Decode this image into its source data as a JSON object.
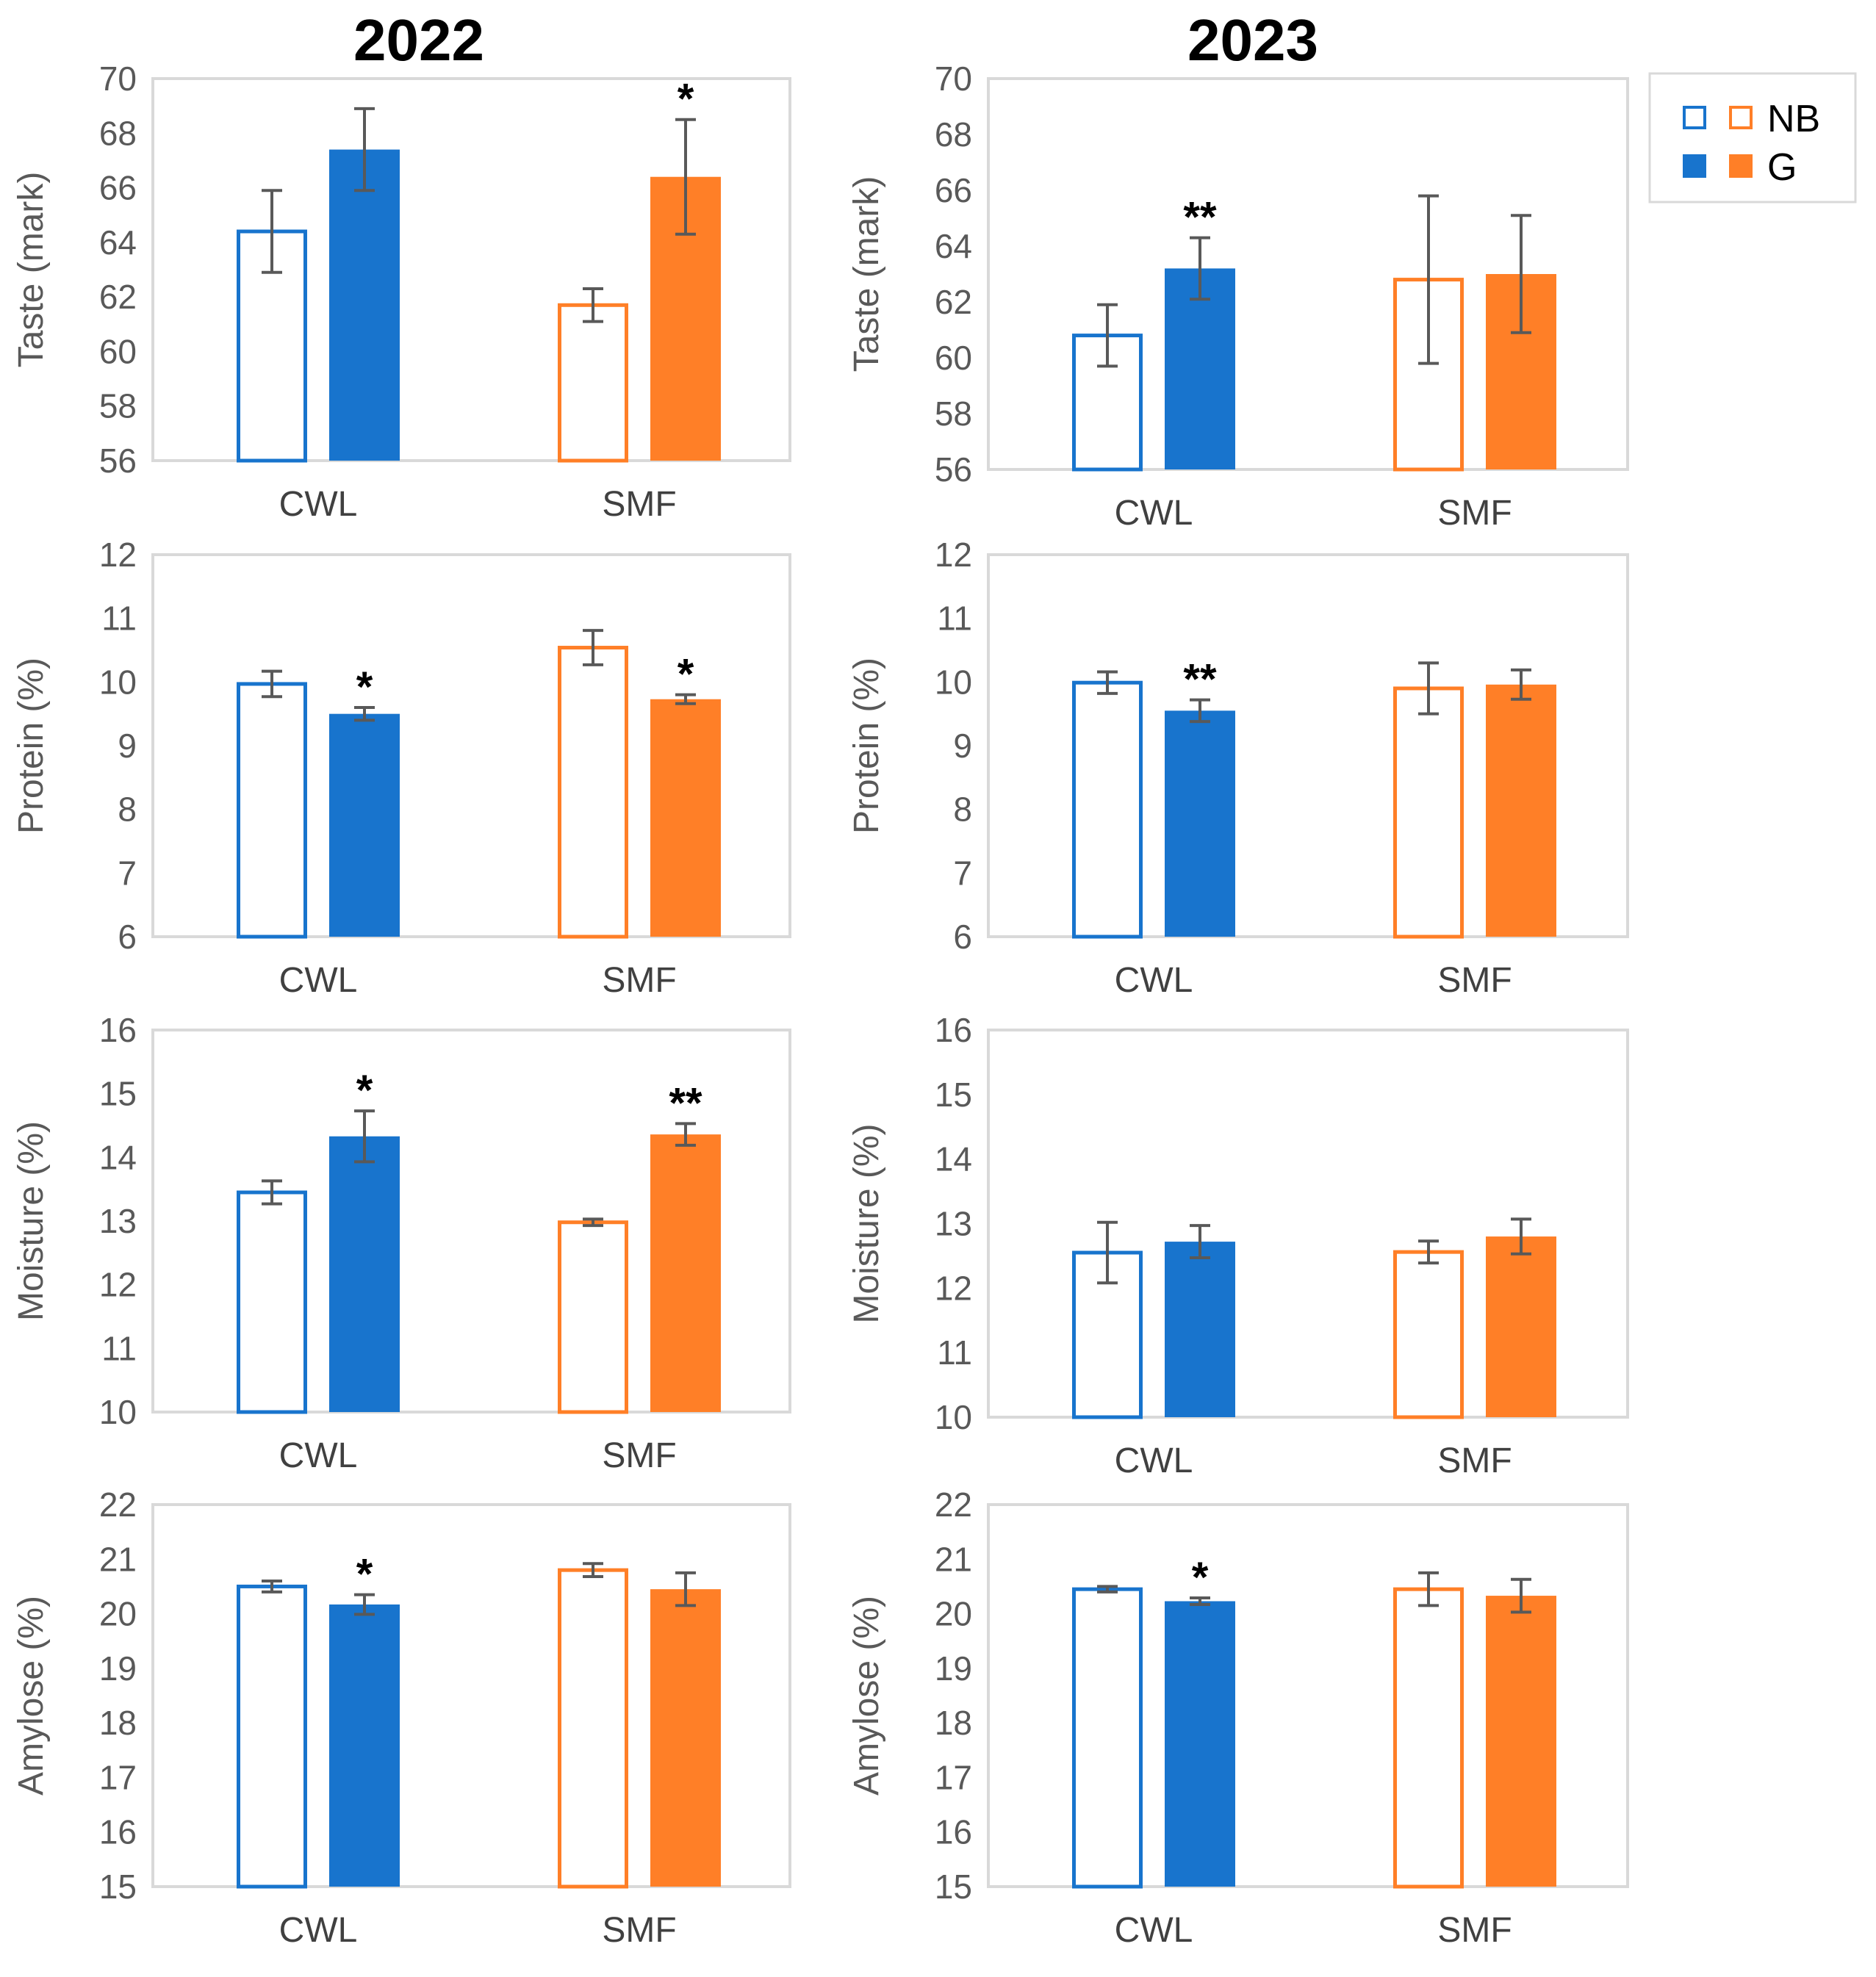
{
  "colors": {
    "blue": "#1874CD",
    "orange": "#FF7F27",
    "frame": "#D9D9D9",
    "error_bar": "#595959"
  },
  "legend": [
    {
      "label": "NB",
      "fill": "open"
    },
    {
      "label": "G",
      "fill": "solid"
    }
  ],
  "years": [
    "2022",
    "2023"
  ],
  "chart_data": [
    {
      "type": "bar",
      "year": "2022",
      "ylabel": "Taste (mark)",
      "ylim": [
        56,
        70
      ],
      "yticks": [
        56,
        58,
        60,
        62,
        64,
        66,
        68,
        70
      ],
      "categories": [
        "CWL",
        "SMF"
      ],
      "series": [
        {
          "name": "NB",
          "values": [
            64.4,
            61.7
          ],
          "errors": [
            1.5,
            0.6
          ]
        },
        {
          "name": "G",
          "values": [
            67.4,
            66.4
          ],
          "errors": [
            1.5,
            2.1
          ]
        }
      ],
      "significance": [
        {
          "category": "SMF",
          "series": "G",
          "label": "*"
        }
      ]
    },
    {
      "type": "bar",
      "year": "2023",
      "ylabel": "Taste (mark)",
      "ylim": [
        56,
        70
      ],
      "yticks": [
        56,
        58,
        60,
        62,
        64,
        66,
        68,
        70
      ],
      "categories": [
        "CWL",
        "SMF"
      ],
      "series": [
        {
          "name": "NB",
          "values": [
            60.8,
            62.8
          ],
          "errors": [
            1.1,
            3.0
          ]
        },
        {
          "name": "G",
          "values": [
            63.2,
            63.0
          ],
          "errors": [
            1.1,
            2.1
          ]
        }
      ],
      "significance": [
        {
          "category": "CWL",
          "series": "G",
          "label": "**"
        }
      ]
    },
    {
      "type": "bar",
      "year": "2022",
      "ylabel": "Protein (%)",
      "ylim": [
        6,
        12
      ],
      "yticks": [
        6,
        7,
        8,
        9,
        10,
        11,
        12
      ],
      "categories": [
        "CWL",
        "SMF"
      ],
      "series": [
        {
          "name": "NB",
          "values": [
            9.97,
            10.54
          ],
          "errors": [
            0.2,
            0.27
          ]
        },
        {
          "name": "G",
          "values": [
            9.5,
            9.73
          ],
          "errors": [
            0.1,
            0.07
          ]
        }
      ],
      "significance": [
        {
          "category": "CWL",
          "series": "G",
          "label": "*"
        },
        {
          "category": "SMF",
          "series": "G",
          "label": "*"
        }
      ]
    },
    {
      "type": "bar",
      "year": "2023",
      "ylabel": "Protein (%)",
      "ylim": [
        6,
        12
      ],
      "yticks": [
        6,
        7,
        8,
        9,
        10,
        11,
        12
      ],
      "categories": [
        "CWL",
        "SMF"
      ],
      "series": [
        {
          "name": "NB",
          "values": [
            9.99,
            9.9
          ],
          "errors": [
            0.17,
            0.4
          ]
        },
        {
          "name": "G",
          "values": [
            9.55,
            9.96
          ],
          "errors": [
            0.17,
            0.23
          ]
        }
      ],
      "significance": [
        {
          "category": "CWL",
          "series": "G",
          "label": "**"
        }
      ]
    },
    {
      "type": "bar",
      "year": "2022",
      "ylabel": "Moisture (%)",
      "ylim": [
        10,
        16
      ],
      "yticks": [
        10,
        11,
        12,
        13,
        14,
        15,
        16
      ],
      "categories": [
        "CWL",
        "SMF"
      ],
      "series": [
        {
          "name": "NB",
          "values": [
            13.45,
            12.98
          ],
          "errors": [
            0.18,
            0.05
          ]
        },
        {
          "name": "G",
          "values": [
            14.33,
            14.36
          ],
          "errors": [
            0.4,
            0.17
          ]
        }
      ],
      "significance": [
        {
          "category": "CWL",
          "series": "G",
          "label": "*"
        },
        {
          "category": "SMF",
          "series": "G",
          "label": "**"
        }
      ]
    },
    {
      "type": "bar",
      "year": "2023",
      "ylabel": "Moisture (%)",
      "ylim": [
        10,
        16
      ],
      "yticks": [
        10,
        11,
        12,
        13,
        14,
        15,
        16
      ],
      "categories": [
        "CWL",
        "SMF"
      ],
      "series": [
        {
          "name": "NB",
          "values": [
            12.55,
            12.56
          ],
          "errors": [
            0.47,
            0.17
          ]
        },
        {
          "name": "G",
          "values": [
            12.72,
            12.8
          ],
          "errors": [
            0.25,
            0.27
          ]
        }
      ],
      "significance": []
    },
    {
      "type": "bar",
      "year": "2022",
      "ylabel": "Amylose (%)",
      "ylim": [
        15,
        22
      ],
      "yticks": [
        15,
        16,
        17,
        18,
        19,
        20,
        21,
        22
      ],
      "categories": [
        "CWL",
        "SMF"
      ],
      "series": [
        {
          "name": "NB",
          "values": [
            20.5,
            20.8
          ],
          "errors": [
            0.1,
            0.12
          ]
        },
        {
          "name": "G",
          "values": [
            20.17,
            20.45
          ],
          "errors": [
            0.18,
            0.3
          ]
        }
      ],
      "significance": [
        {
          "category": "CWL",
          "series": "G",
          "label": "*"
        }
      ]
    },
    {
      "type": "bar",
      "year": "2023",
      "ylabel": "Amylose (%)",
      "ylim": [
        15,
        22
      ],
      "yticks": [
        15,
        16,
        17,
        18,
        19,
        20,
        21,
        22
      ],
      "categories": [
        "CWL",
        "SMF"
      ],
      "series": [
        {
          "name": "NB",
          "values": [
            20.45,
            20.45
          ],
          "errors": [
            0.05,
            0.3
          ]
        },
        {
          "name": "G",
          "values": [
            20.23,
            20.33
          ],
          "errors": [
            0.06,
            0.3
          ]
        }
      ],
      "significance": [
        {
          "category": "CWL",
          "series": "G",
          "label": "*"
        }
      ]
    }
  ]
}
